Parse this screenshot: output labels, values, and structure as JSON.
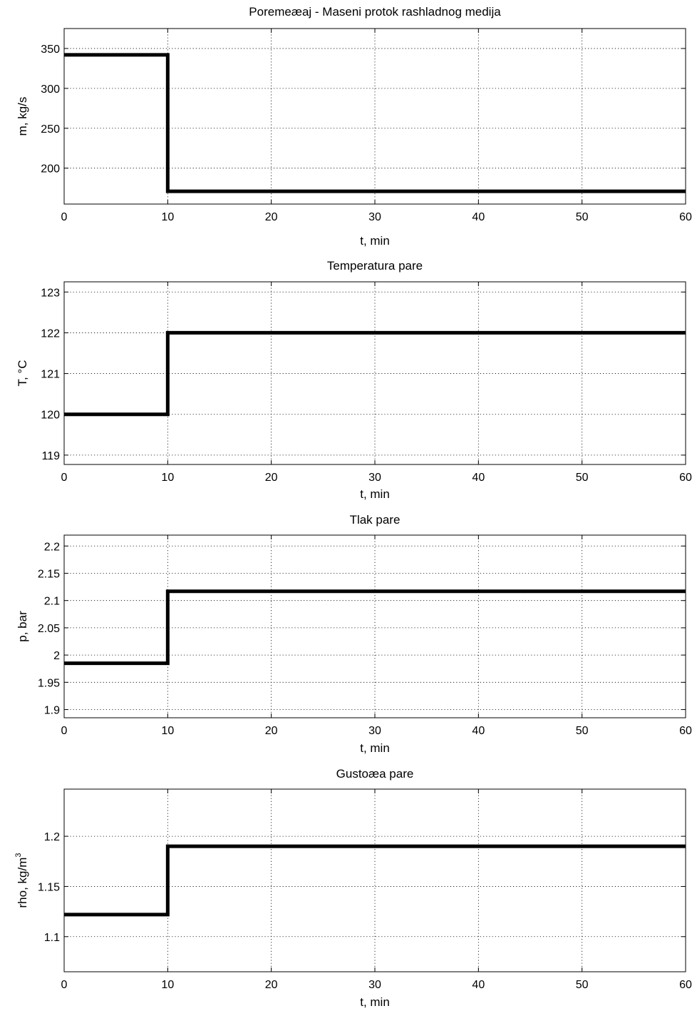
{
  "chart_data": [
    {
      "type": "line",
      "title": "Poremeæaj - Maseni protok rashladnog medija",
      "xlabel": "t, min",
      "ylabel": "m, kg/s",
      "xlim": [
        0,
        60
      ],
      "ylim": [
        155,
        375
      ],
      "xticks": [
        "0",
        "10",
        "20",
        "30",
        "40",
        "50",
        "60"
      ],
      "yticks": [
        "200",
        "250",
        "300",
        "350"
      ],
      "grid": true,
      "series": [
        {
          "x": [
            0,
            10,
            10,
            60
          ],
          "y": [
            342,
            342,
            171,
            171
          ]
        }
      ]
    },
    {
      "type": "line",
      "title": "Temperatura pare",
      "xlabel": "t, min",
      "ylabel": "T, °C",
      "xlim": [
        0,
        60
      ],
      "ylim": [
        118.77,
        123.25
      ],
      "xticks": [
        "0",
        "10",
        "20",
        "30",
        "40",
        "50",
        "60"
      ],
      "yticks": [
        "119",
        "120",
        "121",
        "122",
        "123"
      ],
      "grid": true,
      "series": [
        {
          "x": [
            0,
            10,
            10,
            60
          ],
          "y": [
            120,
            120,
            122,
            122
          ]
        }
      ]
    },
    {
      "type": "line",
      "title": "Tlak pare",
      "xlabel": "t, min",
      "ylabel": "p, bar",
      "xlim": [
        0,
        60
      ],
      "ylim": [
        1.885,
        2.22
      ],
      "xticks": [
        "0",
        "10",
        "20",
        "30",
        "40",
        "50",
        "60"
      ],
      "yticks": [
        "1.9",
        "1.95",
        "2",
        "2.05",
        "2.1",
        "2.15",
        "2.2"
      ],
      "grid": true,
      "series": [
        {
          "x": [
            0,
            10,
            10,
            60
          ],
          "y": [
            1.985,
            1.985,
            2.117,
            2.117
          ]
        }
      ]
    },
    {
      "type": "line",
      "title": "Gustoæa pare",
      "xlabel": "t, min",
      "ylabel": "rho, kg/m",
      "ylabel_sup": "3",
      "xlim": [
        0,
        60
      ],
      "ylim": [
        1.065,
        1.247
      ],
      "xticks": [
        "0",
        "10",
        "20",
        "30",
        "40",
        "50",
        "60"
      ],
      "yticks": [
        "1.1",
        "1.15",
        "1.2"
      ],
      "grid": true,
      "series": [
        {
          "x": [
            0,
            10,
            10,
            60
          ],
          "y": [
            1.122,
            1.122,
            1.19,
            1.19
          ]
        }
      ]
    }
  ]
}
